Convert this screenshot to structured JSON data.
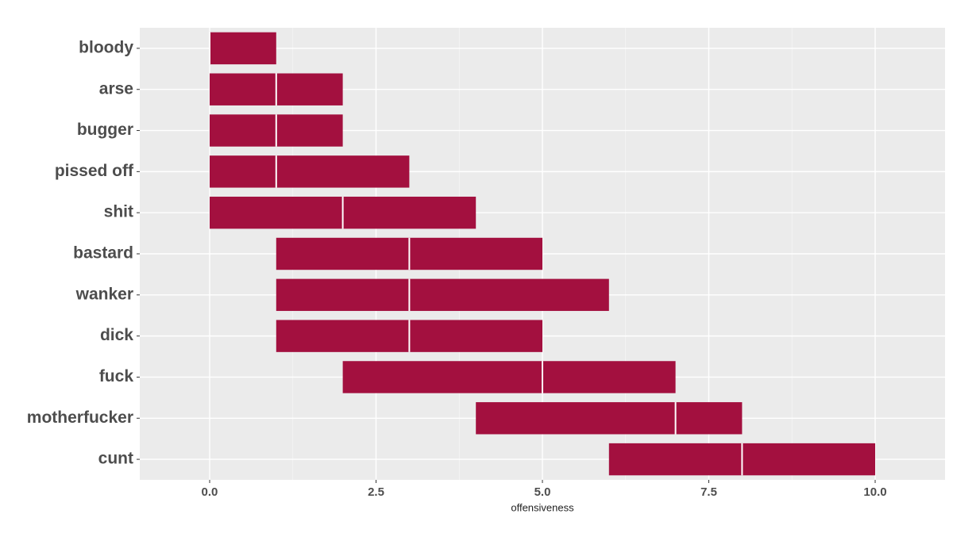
{
  "chart_data": {
    "type": "crossbar",
    "x_label": "offensiveness",
    "categories": [
      "bloody",
      "arse",
      "bugger",
      "pissed off",
      "shit",
      "bastard",
      "wanker",
      "dick",
      "fuck",
      "motherfucker",
      "cunt"
    ],
    "series": [
      {
        "name": "q1",
        "values": [
          0,
          0,
          0,
          0,
          0,
          1,
          1,
          1,
          2,
          4,
          6
        ]
      },
      {
        "name": "median",
        "values": [
          0,
          1,
          1,
          1,
          2,
          3,
          3,
          3,
          5,
          7,
          8
        ]
      },
      {
        "name": "q3",
        "values": [
          1,
          2,
          2,
          3,
          4,
          5,
          6,
          5,
          7,
          8,
          10
        ]
      }
    ],
    "color": "#a3103f",
    "median_color": "#ffffff",
    "xlim": [
      -1.05,
      11.05
    ],
    "xticks": [
      {
        "value": 0,
        "label": "0.0"
      },
      2.5,
      {
        "value": 5,
        "label": "5.0"
      },
      7.5,
      {
        "value": 10,
        "label": "10.0"
      }
    ],
    "x_minor_ticks": [
      1.25,
      3.75,
      6.25,
      8.75
    ],
    "grid": true
  }
}
